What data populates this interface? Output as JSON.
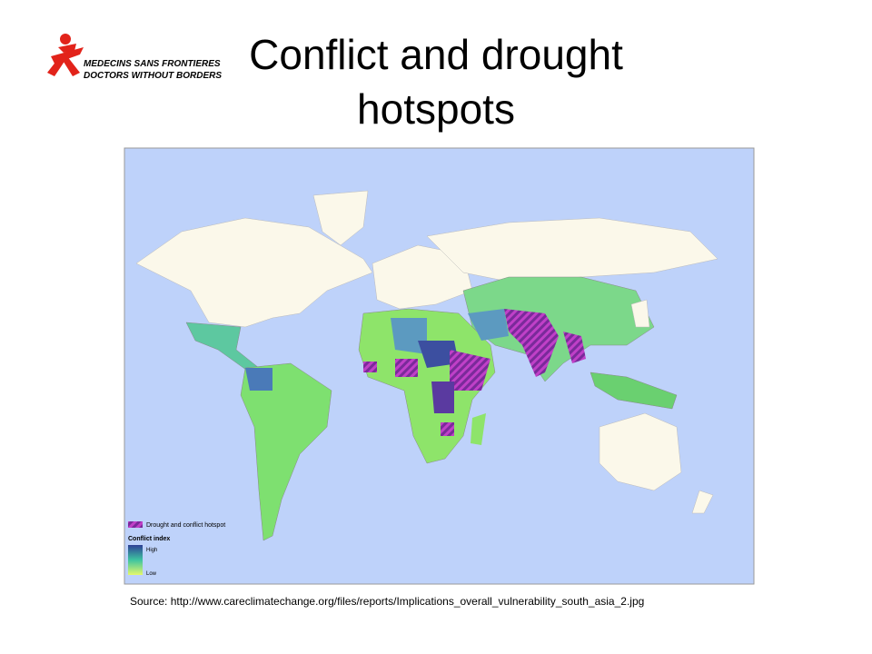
{
  "logo": {
    "line1": "MEDECINS SANS FRONTIERES",
    "line2": "DOCTORS WITHOUT BORDERS"
  },
  "title": {
    "line1": "Conflict and drought",
    "line2": "hotspots"
  },
  "map": {
    "legend": {
      "hotspot": "Drought and conflict hotspot",
      "index_title": "Conflict index",
      "high": "High",
      "low": "Low"
    }
  },
  "source": "Source: http://www.careclimatechange.org/files/reports/Implications_overall_vulnerability_south_asia_2.jpg"
}
